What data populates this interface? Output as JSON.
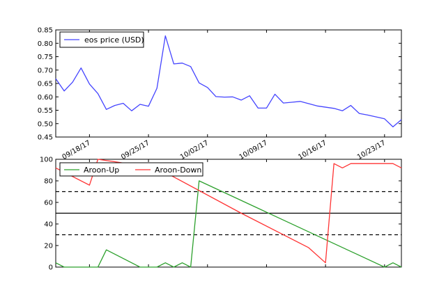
{
  "chart_data": [
    {
      "type": "line",
      "title": "",
      "xlabel": "",
      "ylabel": "",
      "x": [
        "2017-09-14",
        "2017-09-15",
        "2017-09-16",
        "2017-09-17",
        "2017-09-18",
        "2017-09-19",
        "2017-09-20",
        "2017-09-21",
        "2017-09-22",
        "2017-09-23",
        "2017-09-24",
        "2017-09-25",
        "2017-09-26",
        "2017-09-27",
        "2017-09-28",
        "2017-09-29",
        "2017-09-30",
        "2017-10-01",
        "2017-10-02",
        "2017-10-03",
        "2017-10-04",
        "2017-10-05",
        "2017-10-06",
        "2017-10-07",
        "2017-10-08",
        "2017-10-09",
        "2017-10-10",
        "2017-10-11",
        "2017-10-12",
        "2017-10-13",
        "2017-10-14",
        "2017-10-15",
        "2017-10-16",
        "2017-10-17",
        "2017-10-18",
        "2017-10-19",
        "2017-10-20",
        "2017-10-21",
        "2017-10-22",
        "2017-10-23",
        "2017-10-24",
        "2017-10-25"
      ],
      "series": [
        {
          "name": "eos price (USD)",
          "color": "#4444ff",
          "values": [
            0.668,
            0.622,
            0.655,
            0.708,
            0.648,
            0.612,
            0.553,
            0.568,
            0.576,
            0.548,
            0.572,
            0.565,
            0.632,
            0.828,
            0.723,
            0.726,
            0.713,
            0.652,
            0.635,
            0.601,
            0.599,
            0.6,
            0.588,
            0.604,
            0.558,
            0.558,
            0.61,
            0.577,
            0.58,
            0.583,
            null,
            0.566,
            null,
            0.557,
            0.548,
            0.568,
            0.538,
            0.532,
            null,
            0.518,
            0.488,
            0.515
          ]
        }
      ],
      "ylim": [
        0.45,
        0.85
      ],
      "yticks": [
        "0.45",
        "0.50",
        "0.55",
        "0.60",
        "0.65",
        "0.70",
        "0.75",
        "0.80",
        "0.85"
      ],
      "xticks": [
        {
          "date": "2017-09-18",
          "label": "09/18/17"
        },
        {
          "date": "2017-09-25",
          "label": "09/25/17"
        },
        {
          "date": "2017-10-02",
          "label": "10/02/17"
        },
        {
          "date": "2017-10-09",
          "label": "10/09/17"
        },
        {
          "date": "2017-10-16",
          "label": "10/16/17"
        },
        {
          "date": "2017-10-23",
          "label": "10/23/17"
        }
      ],
      "legend": "top-left",
      "grid": false
    },
    {
      "type": "line",
      "title": "",
      "xlabel": "",
      "ylabel": "",
      "series": [
        {
          "name": "Aroon-Up",
          "color": "#2ca02c",
          "points": [
            [
              "2017-09-14",
              4
            ],
            [
              "2017-09-15",
              0
            ],
            [
              "2017-09-19",
              0
            ],
            [
              "2017-09-20",
              16
            ],
            [
              "2017-09-24",
              0
            ],
            [
              "2017-09-26",
              0
            ],
            [
              "2017-09-27",
              4
            ],
            [
              "2017-09-28",
              0
            ],
            [
              "2017-09-29",
              4
            ],
            [
              "2017-09-30",
              0
            ],
            [
              "2017-10-01",
              80
            ],
            [
              "2017-10-23",
              0
            ],
            [
              "2017-10-24",
              4
            ],
            [
              "2017-10-25",
              0
            ]
          ]
        },
        {
          "name": "Aroon-Down",
          "color": "#ff3333",
          "points": [
            [
              "2017-09-14",
              92
            ],
            [
              "2017-09-18",
              76
            ],
            [
              "2017-09-19",
              100
            ],
            [
              "2017-09-26",
              92
            ],
            [
              "2017-10-06",
              50
            ],
            [
              "2017-10-14",
              18
            ],
            [
              "2017-10-16",
              4
            ],
            [
              "2017-10-17",
              96
            ],
            [
              "2017-10-18",
              92
            ],
            [
              "2017-10-19",
              96
            ],
            [
              "2017-10-24",
              96
            ],
            [
              "2017-10-25",
              92
            ]
          ]
        }
      ],
      "reference_lines": [
        {
          "y": 70,
          "style": "dashed",
          "color": "#000000"
        },
        {
          "y": 50,
          "style": "solid",
          "color": "#000000"
        },
        {
          "y": 30,
          "style": "dashed",
          "color": "#000000"
        }
      ],
      "ylim": [
        0,
        100
      ],
      "yticks": [
        "0",
        "20",
        "40",
        "60",
        "80",
        "100"
      ],
      "legend": "top-left",
      "grid": false
    }
  ]
}
